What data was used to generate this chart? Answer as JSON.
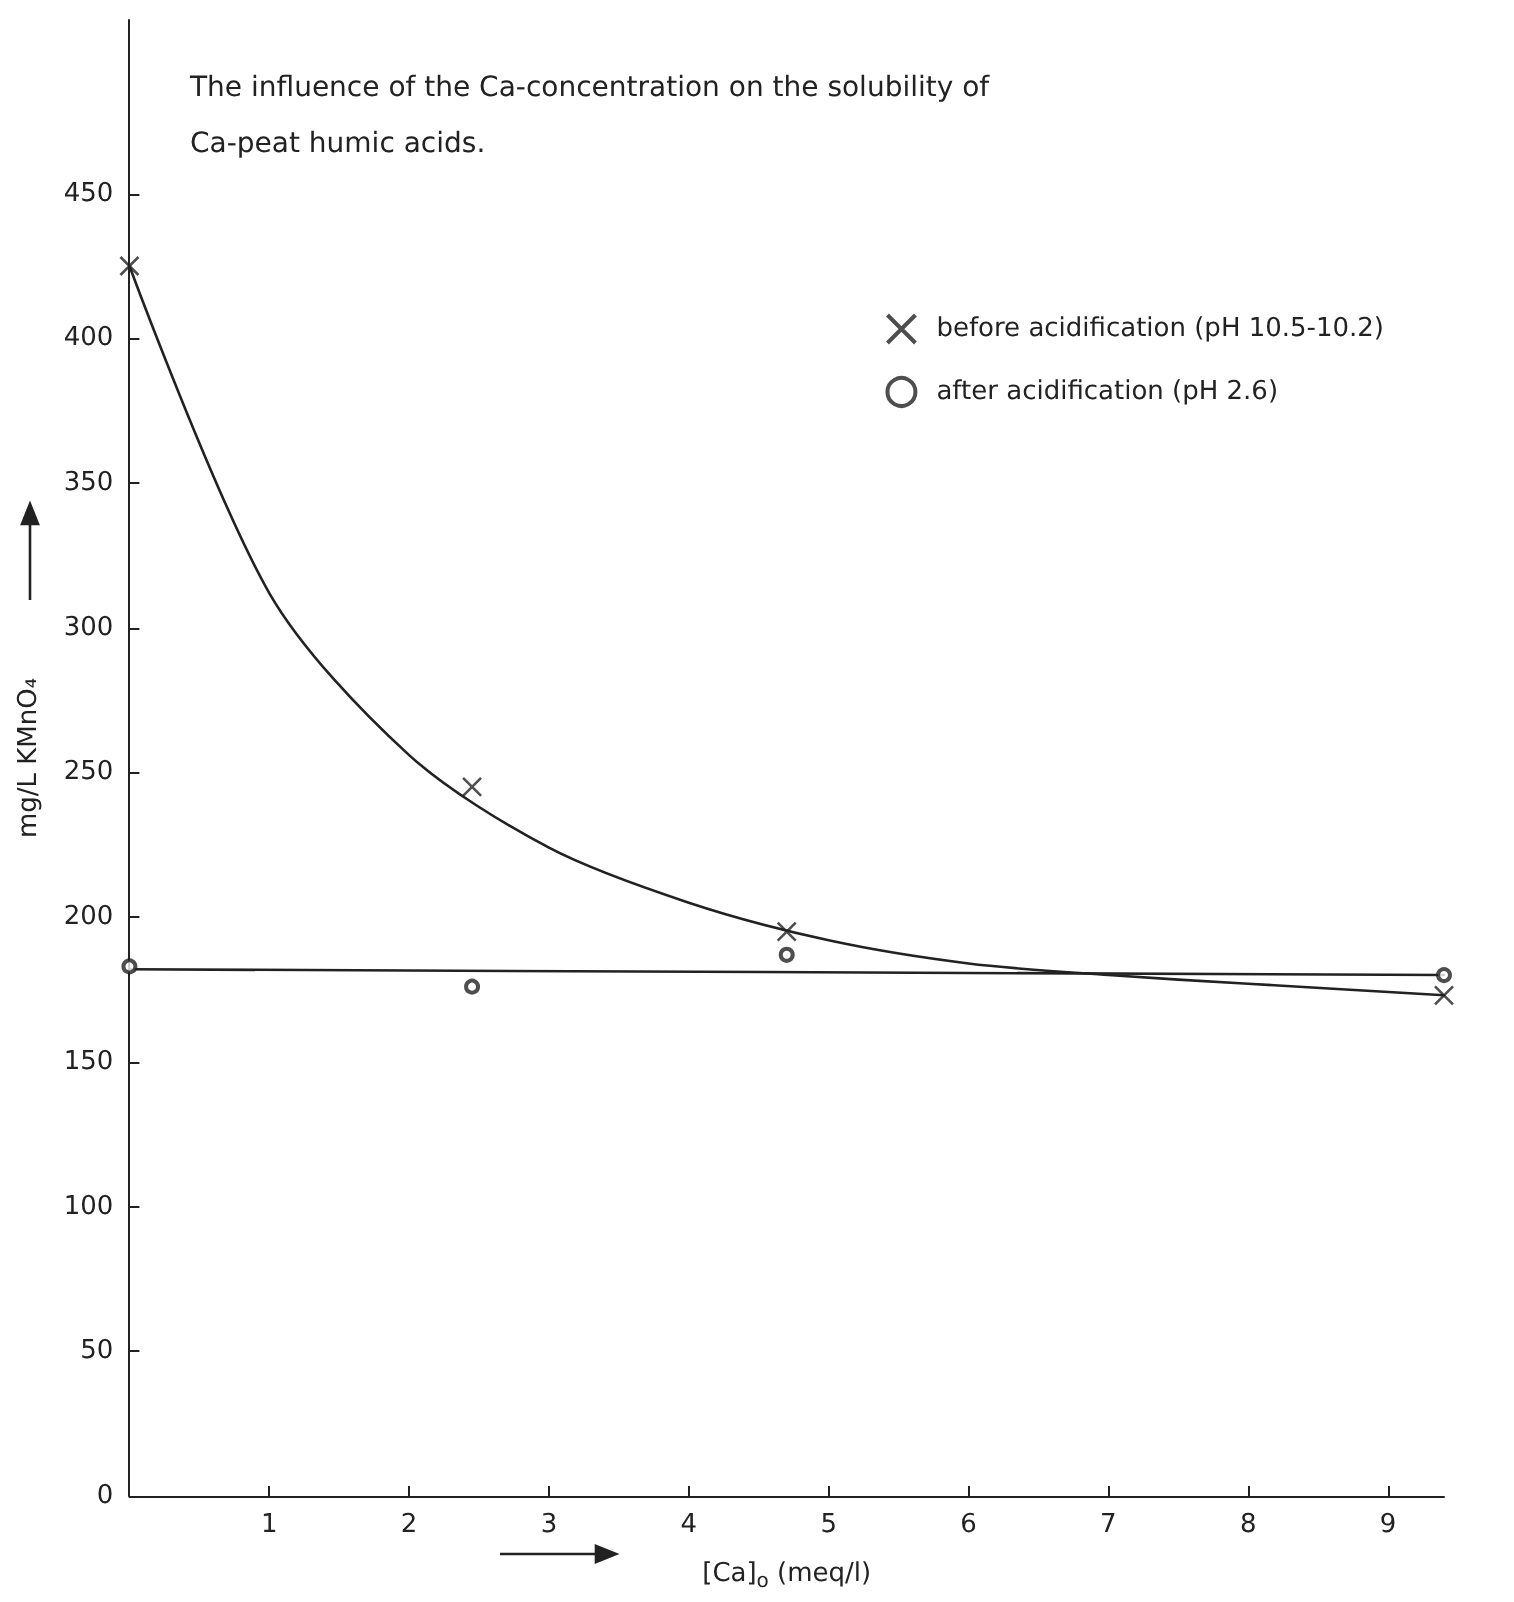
{
  "chart_data": {
    "type": "scatter",
    "title": "The influence of the Ca-concentration on the solubility of\nCa-peat humic acids.",
    "xlabel": "[Ca]$_{o}$ (meq/l)",
    "ylabel": "mg/L KMnO₄",
    "xlim": [
      0,
      9.4
    ],
    "xticks": [
      1,
      2,
      3,
      4,
      5,
      6,
      7,
      8,
      9
    ],
    "ylim": [
      0,
      510
    ],
    "yticks": [
      0,
      50,
      100,
      150,
      200,
      250,
      300,
      350,
      400,
      450
    ],
    "grid": false,
    "legend": "top right",
    "tick_labels": true,
    "series": [
      {
        "name": "before acidification (pH 10.5-10.2)",
        "marker": "cross",
        "color": "#222222",
        "x": [
          0,
          2.45,
          4.7,
          9.4
        ],
        "values": [
          425,
          245,
          195,
          173
        ]
      },
      {
        "name": "after acidification (pH 2.6)",
        "marker": "circle",
        "color": "#222222",
        "x": [
          0,
          2.45,
          4.7,
          9.4
        ],
        "values": [
          183,
          176,
          187,
          180
        ]
      },
      {
        "type": "line",
        "marker": "none",
        "color": "#222222",
        "x": [
          0,
          1,
          2,
          3,
          4,
          5,
          6,
          7,
          8,
          9.4
        ],
        "values": [
          425,
          312,
          256,
          224,
          205,
          192,
          184,
          180,
          177,
          173
        ]
      },
      {
        "type": "line",
        "marker": "none",
        "color": "#222222",
        "x": [
          0,
          9.4
        ],
        "values": [
          182,
          180
        ]
      }
    ]
  }
}
